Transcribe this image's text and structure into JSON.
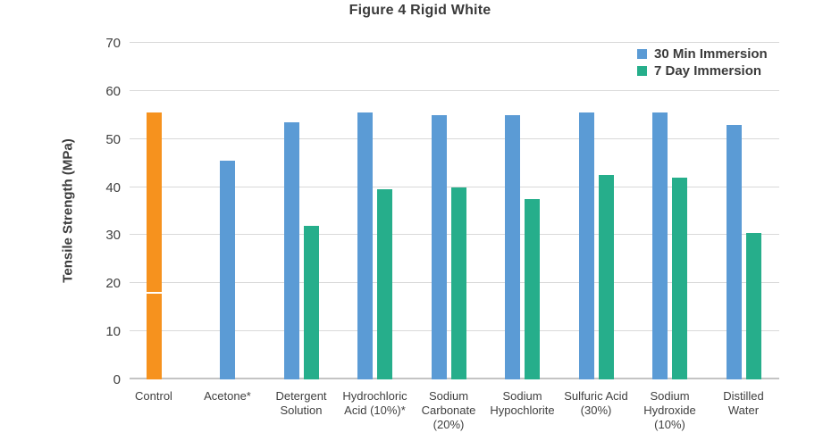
{
  "title": "Figure 4 Rigid White",
  "chart_data": {
    "type": "bar",
    "title": "Figure 4 Rigid White",
    "ylabel": "Tensile Strength (MPa)",
    "xlabel": "",
    "ylim": [
      0,
      70
    ],
    "yticks": [
      0,
      10,
      20,
      30,
      40,
      50,
      60,
      70
    ],
    "grid": true,
    "legend_position": "top-right",
    "categories": [
      "Control",
      "Acetone*",
      "Detergent Solution",
      "Hydrochloric Acid (10%)*",
      "Sodium Carbonate (20%)",
      "Sodium Hypochlorite",
      "Sulfuric Acid (30%)",
      "Sodium Hydroxide (10%)",
      "Distilled Water"
    ],
    "series": [
      {
        "name": "30 Min Immersion",
        "color": "#5B9BD5",
        "values": [
          55.5,
          45.5,
          53.5,
          55.5,
          55,
          55,
          55.5,
          55.5,
          53
        ]
      },
      {
        "name": "7 Day Immersion",
        "color": "#26AE8B",
        "values": [
          null,
          null,
          32,
          39.5,
          40,
          37.5,
          42.5,
          42,
          30.5
        ]
      }
    ],
    "control_bar_color": "#F6921E",
    "colors": {
      "gridline": "#D9D9D9",
      "axis_line": "#C4C4C4",
      "text": "#3B3B3B"
    }
  }
}
